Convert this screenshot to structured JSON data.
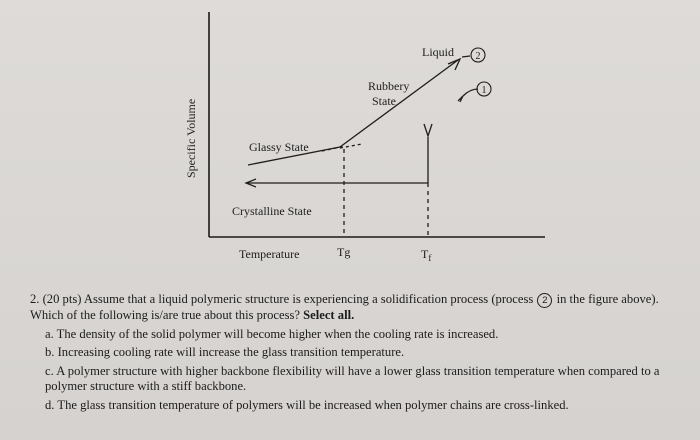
{
  "figure": {
    "y_axis_label": "Specific Volume",
    "x_axis_label": "Temperature",
    "tg_label": "Tg",
    "tf_label_main": "T",
    "tf_label_sub": "f",
    "labels": {
      "liquid": "Liquid",
      "rubbery_line1": "Rubbery",
      "rubbery_line2": "State",
      "glassy": "Glassy State",
      "crystalline": "Crystalline State"
    },
    "process_markers": {
      "one": "1",
      "two": "2"
    }
  },
  "question": {
    "number": "2.",
    "text_before_marker": "(20 pts) Assume that a liquid polymeric structure is experiencing a solidification process (process",
    "marker": "2",
    "text_after_marker": "in the figure above). Which of the following is/are true about this process?",
    "emphasis": "Select all.",
    "options": [
      {
        "letter": "a.",
        "text": "The density of the solid polymer will become higher when the cooling rate is increased."
      },
      {
        "letter": "b.",
        "text": "Increasing cooling rate will increase the glass transition temperature."
      },
      {
        "letter": "c.",
        "text": "A polymer structure with higher backbone flexibility will have a lower glass transition temperature when compared to a polymer structure with a stiff backbone."
      },
      {
        "letter": "d.",
        "text": "The glass transition temperature of polymers will be increased when polymer chains are cross-linked."
      }
    ]
  }
}
